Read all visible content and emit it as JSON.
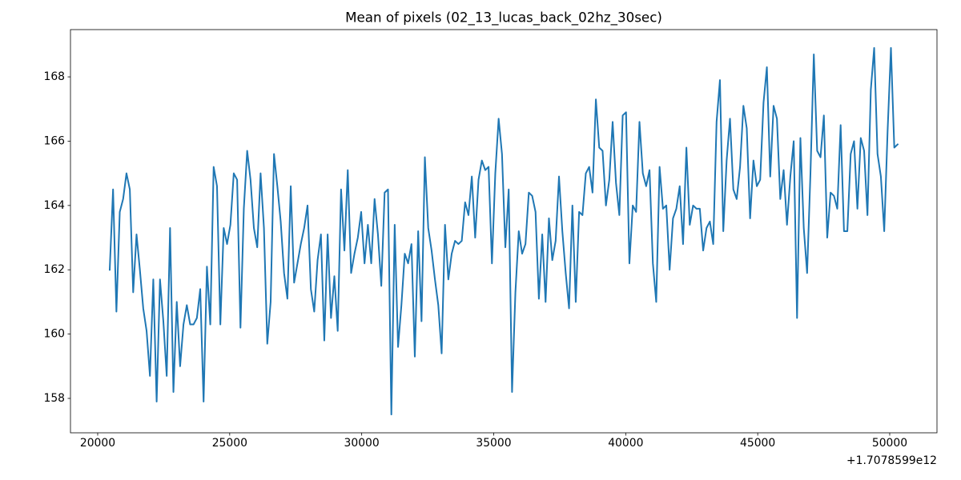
{
  "chart_data": {
    "type": "line",
    "title": "Mean of pixels (02_13_lucas_back_02hz_30sec)",
    "x_offset_text": "+1.7078599e12",
    "color": "#1f77b4",
    "x": [
      20455,
      20582,
      20709,
      20836,
      20963,
      21090,
      21217,
      21344,
      21471,
      21598,
      21725,
      21852,
      21979,
      22106,
      22233,
      22360,
      22487,
      22614,
      22741,
      22868,
      22995,
      23122,
      23249,
      23376,
      23503,
      23630,
      23757,
      23884,
      24011,
      24138,
      24265,
      24392,
      24519,
      24646,
      24773,
      24900,
      25027,
      25154,
      25281,
      25408,
      25535,
      25662,
      25789,
      25916,
      26043,
      26170,
      26297,
      26424,
      26551,
      26678,
      26805,
      26932,
      27059,
      27186,
      27313,
      27440,
      27567,
      27694,
      27821,
      27948,
      28075,
      28202,
      28329,
      28456,
      28583,
      28710,
      28837,
      28964,
      29091,
      29218,
      29345,
      29472,
      29599,
      29726,
      29853,
      29980,
      30107,
      30234,
      30361,
      30488,
      30615,
      30742,
      30869,
      30996,
      31123,
      31250,
      31377,
      31504,
      31631,
      31758,
      31885,
      32012,
      32139,
      32266,
      32393,
      32520,
      32647,
      32774,
      32901,
      33028,
      33155,
      33282,
      33409,
      33536,
      33663,
      33790,
      33917,
      34044,
      34171,
      34298,
      34425,
      34552,
      34679,
      34806,
      34933,
      35060,
      35187,
      35314,
      35441,
      35568,
      35695,
      35822,
      35949,
      36076,
      36203,
      36330,
      36457,
      36584,
      36711,
      36838,
      36965,
      37092,
      37219,
      37346,
      37473,
      37600,
      37727,
      37854,
      37981,
      38108,
      38235,
      38362,
      38489,
      38616,
      38743,
      38870,
      38997,
      39124,
      39251,
      39378,
      39505,
      39632,
      39759,
      39886,
      40013,
      40140,
      40267,
      40394,
      40521,
      40648,
      40775,
      40902,
      41029,
      41156,
      41283,
      41410,
      41537,
      41664,
      41791,
      41918,
      42045,
      42172,
      42299,
      42426,
      42553,
      42680,
      42807,
      42934,
      43061,
      43188,
      43315,
      43442,
      43569,
      43696,
      43823,
      43950,
      44077,
      44204,
      44331,
      44458,
      44585,
      44712,
      44839,
      44966,
      45093,
      45220,
      45347,
      45474,
      45601,
      45728,
      45855,
      45982,
      46109,
      46236,
      46363,
      46490,
      46617,
      46744,
      46871,
      46998,
      47125,
      47252,
      47379,
      47506,
      47633,
      47760,
      47887,
      48014,
      48141,
      48268,
      48395,
      48522,
      48649,
      48776,
      48903,
      49030,
      49157,
      49284,
      49411,
      49538,
      49665,
      49792,
      49919,
      50046,
      50173,
      50300
    ],
    "values": [
      162.0,
      164.5,
      160.7,
      163.8,
      164.2,
      165.0,
      164.5,
      161.3,
      163.1,
      162.0,
      160.8,
      160.1,
      158.7,
      161.7,
      157.9,
      161.7,
      160.4,
      158.7,
      163.3,
      158.2,
      161.0,
      159.0,
      160.3,
      160.9,
      160.3,
      160.3,
      160.5,
      161.4,
      157.9,
      162.1,
      160.3,
      165.2,
      164.6,
      160.3,
      163.3,
      162.8,
      163.4,
      165.0,
      164.8,
      160.2,
      163.9,
      165.7,
      164.8,
      163.3,
      162.7,
      165.0,
      163.3,
      159.7,
      161.0,
      165.6,
      164.6,
      163.5,
      161.9,
      161.1,
      164.6,
      161.6,
      162.2,
      162.8,
      163.3,
      164.0,
      161.4,
      160.7,
      162.3,
      163.1,
      159.8,
      163.1,
      160.5,
      161.8,
      160.1,
      164.5,
      162.6,
      165.1,
      161.9,
      162.5,
      163.0,
      163.8,
      162.2,
      163.4,
      162.2,
      164.2,
      163.1,
      161.5,
      164.4,
      164.5,
      157.5,
      163.4,
      159.6,
      160.9,
      162.5,
      162.2,
      162.8,
      159.3,
      163.2,
      160.4,
      165.5,
      163.3,
      162.6,
      161.7,
      160.9,
      159.4,
      163.4,
      161.7,
      162.5,
      162.9,
      162.8,
      162.9,
      164.1,
      163.7,
      164.9,
      163.0,
      164.8,
      165.4,
      165.1,
      165.2,
      162.2,
      165.0,
      166.7,
      165.6,
      162.7,
      164.5,
      158.2,
      161.3,
      163.2,
      162.5,
      162.8,
      164.4,
      164.3,
      163.8,
      161.1,
      163.1,
      161.0,
      163.6,
      162.3,
      162.9,
      164.9,
      163.2,
      161.9,
      160.8,
      164.0,
      161.0,
      163.8,
      163.7,
      165.0,
      165.2,
      164.4,
      167.3,
      165.8,
      165.7,
      164.0,
      164.8,
      166.6,
      164.7,
      163.7,
      166.8,
      166.9,
      162.2,
      164.0,
      163.8,
      166.6,
      165.0,
      164.6,
      165.1,
      162.2,
      161.0,
      165.2,
      163.9,
      164.0,
      162.0,
      163.6,
      163.9,
      164.6,
      162.8,
      165.8,
      163.4,
      164.0,
      163.9,
      163.9,
      162.6,
      163.3,
      163.5,
      162.8,
      166.6,
      167.9,
      163.2,
      165.4,
      166.7,
      164.5,
      164.2,
      165.2,
      167.1,
      166.4,
      163.6,
      165.4,
      164.6,
      164.8,
      167.2,
      168.3,
      164.9,
      167.1,
      166.7,
      164.2,
      165.1,
      163.4,
      164.9,
      166.0,
      160.5,
      166.1,
      163.3,
      161.9,
      165.0,
      168.7,
      165.7,
      165.5,
      166.8,
      163.0,
      164.4,
      164.3,
      163.9,
      166.5,
      163.2,
      163.2,
      165.6,
      166.0,
      163.9,
      166.1,
      165.7,
      163.7,
      167.6,
      168.9,
      165.6,
      164.9,
      163.2,
      166.3,
      168.9,
      165.8,
      165.9
    ],
    "xlim": [
      18969,
      51790
    ],
    "xticks": [
      20000,
      25000,
      30000,
      35000,
      40000,
      45000,
      50000
    ],
    "ylim": [
      156.93,
      169.47
    ],
    "yticks": [
      158,
      160,
      162,
      164,
      166,
      168
    ],
    "grid": false
  }
}
